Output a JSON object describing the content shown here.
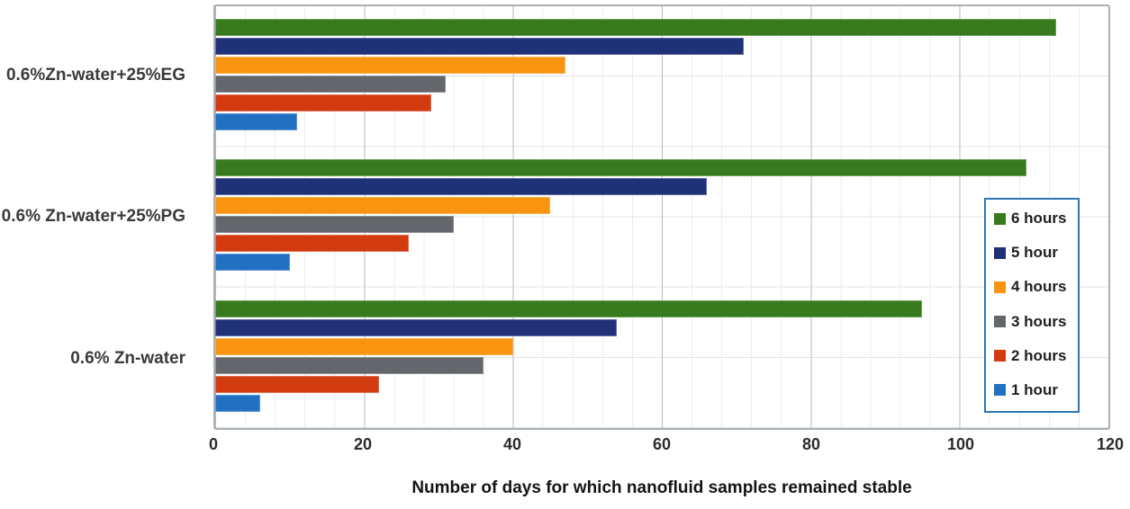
{
  "chart_data": {
    "type": "bar",
    "orientation": "horizontal",
    "title": "",
    "xlabel": "Number of days for which nanofluid samples remained stable",
    "ylabel": "",
    "xlim": [
      0,
      120
    ],
    "x_ticks": [
      0,
      20,
      40,
      60,
      80,
      100,
      120
    ],
    "x_minor_step": 4,
    "grid": true,
    "legend_position": "inside-right",
    "categories": [
      "0.6%Zn-water+25%EG",
      "0.6% Zn-water+25%PG",
      "0.6% Zn-water"
    ],
    "series": [
      {
        "name": "6 hours",
        "color": "#377b1e",
        "values": [
          113,
          109,
          95
        ]
      },
      {
        "name": "5 hour",
        "color": "#1f3177",
        "values": [
          71,
          66,
          54
        ]
      },
      {
        "name": "4 hours",
        "color": "#f89410",
        "values": [
          47,
          45,
          40
        ]
      },
      {
        "name": "3 hours",
        "color": "#63666a",
        "values": [
          31,
          32,
          36
        ]
      },
      {
        "name": "2 hours",
        "color": "#d23a10",
        "values": [
          29,
          26,
          22
        ]
      },
      {
        "name": "1 hour",
        "color": "#2270c2",
        "values": [
          11,
          10,
          6
        ]
      }
    ],
    "colors": {
      "legend_border": "#2e75b6",
      "grid_major": "#b3bac0",
      "grid_minor": "#eaeef1",
      "grid_horizontal": "#dfe4e8",
      "plot_border": "#a9afb5",
      "tick_text": "#2b2b2b"
    }
  }
}
